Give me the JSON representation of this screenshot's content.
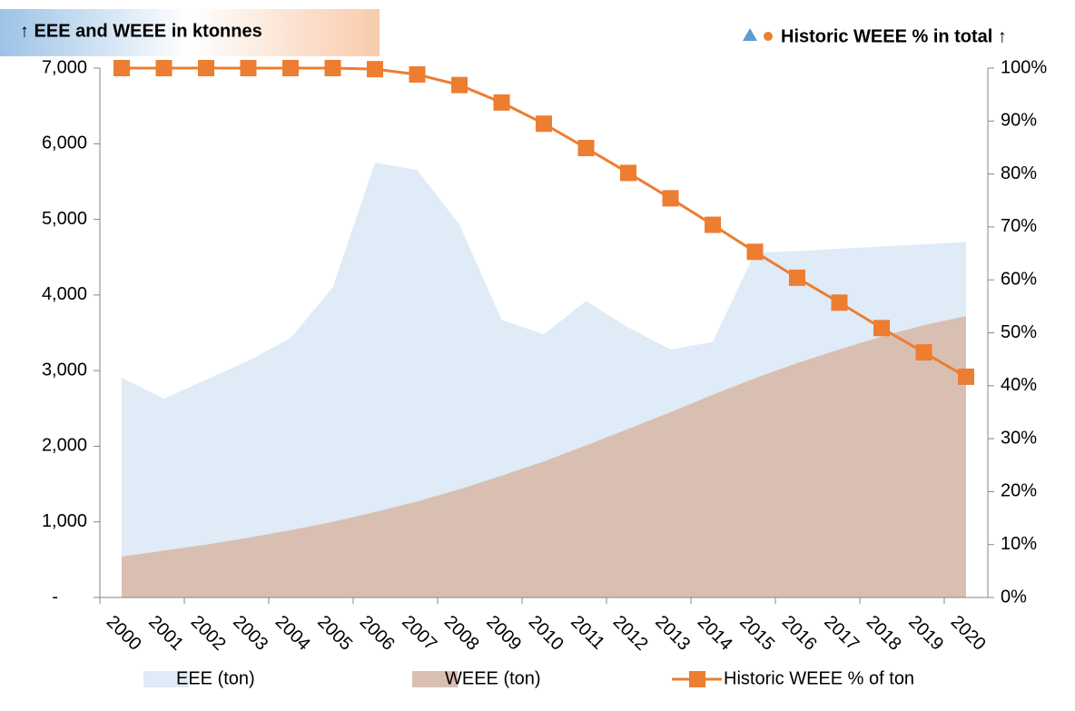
{
  "chart_data": {
    "type": "area-line",
    "title": "↑ EEE and WEEE in ktonnes",
    "y2_title": "Historic WEEE % in total ↑",
    "categories": [
      "2000",
      "2001",
      "2002",
      "2003",
      "2004",
      "2005",
      "2006",
      "2007",
      "2008",
      "2009",
      "2010",
      "2011",
      "2012",
      "2013",
      "2014",
      "2015",
      "2016",
      "2017",
      "2018",
      "2019",
      "2020"
    ],
    "series": [
      {
        "name": "EEE (ton)",
        "color": "#dfebf6",
        "kind": "area",
        "values": [
          2906,
          2630,
          2880,
          3130,
          3430,
          4100,
          5750,
          5650,
          4930,
          3670,
          3480,
          3920,
          3570,
          3280,
          3380,
          4560,
          4580,
          4610,
          4640,
          4670,
          4700
        ]
      },
      {
        "name": "WEEE (ton)",
        "color": "#d9bfb1",
        "kind": "area",
        "values": [
          540,
          620,
          700,
          790,
          890,
          1000,
          1130,
          1270,
          1430,
          1610,
          1800,
          2010,
          2230,
          2450,
          2680,
          2900,
          3100,
          3280,
          3450,
          3600,
          3720
        ]
      },
      {
        "name": "Historic WEEE % of ton",
        "color": "#ed7d31",
        "kind": "line",
        "axis": "y2",
        "values": [
          100,
          100,
          100,
          100,
          100,
          100,
          99.8,
          98.8,
          96.8,
          93.5,
          89.5,
          84.9,
          80.2,
          75.4,
          70.4,
          65.3,
          60.4,
          55.7,
          50.9,
          46.3,
          41.7
        ]
      }
    ],
    "ylim": [
      0,
      7000
    ],
    "yticks": [
      {
        "value": 0,
        "label": "-"
      },
      {
        "value": 1000,
        "label": "1,000"
      },
      {
        "value": 2000,
        "label": "2,000"
      },
      {
        "value": 3000,
        "label": "3,000"
      },
      {
        "value": 4000,
        "label": "4,000"
      },
      {
        "value": 5000,
        "label": "5,000"
      },
      {
        "value": 6000,
        "label": "6,000"
      },
      {
        "value": 7000,
        "label": "7,000"
      }
    ],
    "y2lim": [
      0,
      100
    ],
    "y2ticks": [
      {
        "value": 0,
        "label": "0%"
      },
      {
        "value": 10,
        "label": "10%"
      },
      {
        "value": 20,
        "label": "20%"
      },
      {
        "value": 30,
        "label": "30%"
      },
      {
        "value": 40,
        "label": "40%"
      },
      {
        "value": 50,
        "label": "50%"
      },
      {
        "value": 60,
        "label": "60%"
      },
      {
        "value": 70,
        "label": "70%"
      },
      {
        "value": 80,
        "label": "80%"
      },
      {
        "value": 90,
        "label": "90%"
      },
      {
        "value": 100,
        "label": "100%"
      }
    ],
    "grid": false
  }
}
